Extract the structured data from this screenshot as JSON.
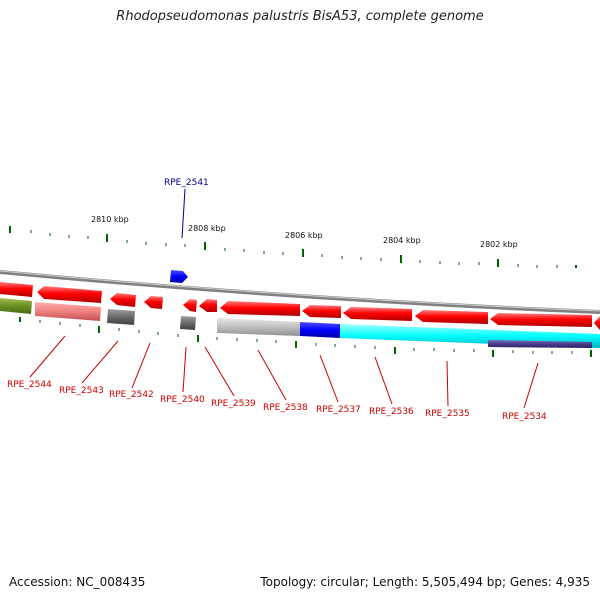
{
  "header": {
    "title": "Rhodopseudomonas palustris BisA53, complete genome"
  },
  "footer": {
    "accession": "Accession: NC_008435",
    "topology": "Topology: circular; Length: 5,505,494 bp; Genes: 4,935"
  },
  "scale": {
    "ticks": [
      "2810 kbp",
      "2808 kbp",
      "2806 kbp",
      "2804 kbp",
      "2802 kbp"
    ]
  },
  "genes": [
    {
      "name": "RPE_2541",
      "color": "#00008b"
    },
    {
      "name": "RPE_2544",
      "color": "#cc0000"
    },
    {
      "name": "RPE_2543",
      "color": "#cc0000"
    },
    {
      "name": "RPE_2542",
      "color": "#cc0000"
    },
    {
      "name": "RPE_2540",
      "color": "#cc0000"
    },
    {
      "name": "RPE_2539",
      "color": "#cc0000"
    },
    {
      "name": "RPE_2538",
      "color": "#cc0000"
    },
    {
      "name": "RPE_2537",
      "color": "#cc0000"
    },
    {
      "name": "RPE_2536",
      "color": "#cc0000"
    },
    {
      "name": "RPE_2535",
      "color": "#cc0000"
    },
    {
      "name": "RPE_2534",
      "color": "#cc0000"
    }
  ],
  "colors": {
    "cds_red": "#ff0000",
    "blue": "#0000ff",
    "cyan": "#00ffff",
    "olive": "#6b8e23",
    "pink": "#f08080",
    "dark_gray": "#696969",
    "light_gray": "#c0c0c0",
    "navy": "#483d8b",
    "tick_green": "#006400",
    "backbone": "#808080"
  }
}
